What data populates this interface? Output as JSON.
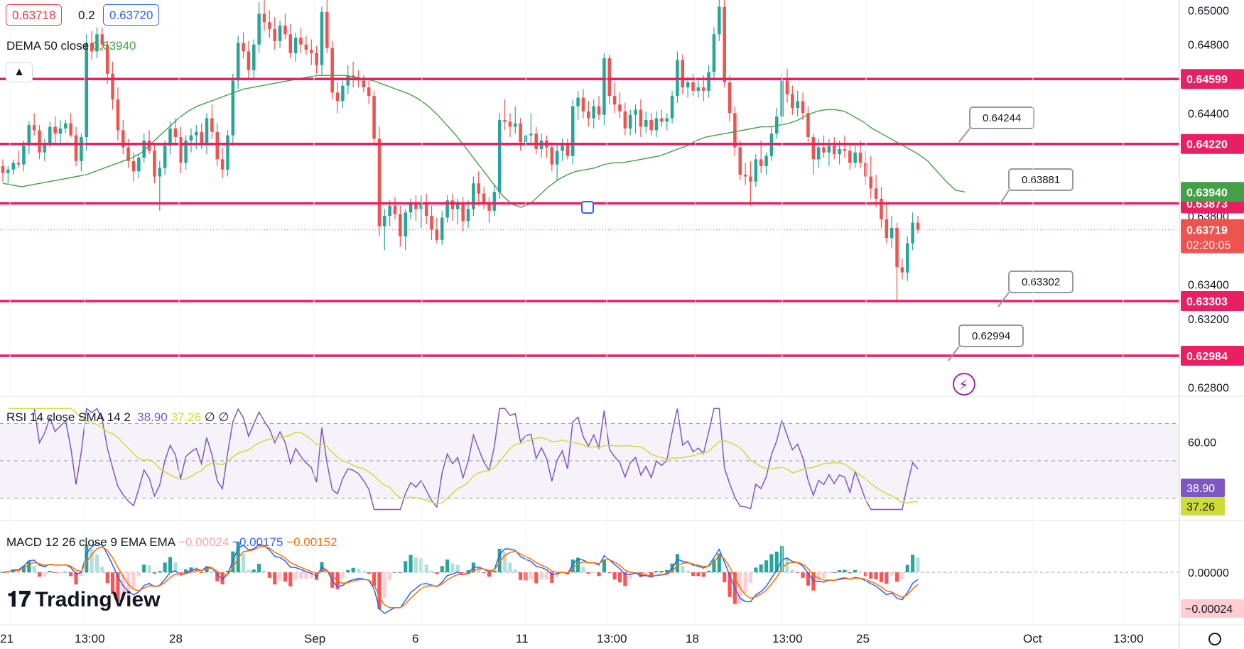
{
  "header": {
    "bid": "0.63718",
    "spread": "0.2",
    "ask": "0.63720",
    "dema_label": "DEMA 50 close",
    "dema_value": "0.63940",
    "rsi_label": "RSI 14 close SMA 14 2",
    "rsi_value": "38.90",
    "rsi_sma_value": "37.26",
    "rsi_extra1": "∅",
    "rsi_extra2": "∅",
    "macd_label": "MACD 12 26 close 9 EMA EMA",
    "macd_hist": "−0.00024",
    "macd_line": "−0.00175",
    "macd_signal": "−0.00152"
  },
  "watermark": "TradingView",
  "colors": {
    "up": "#26a69a",
    "down": "#ef5350",
    "level": "#e91e63",
    "dema": "#43a047",
    "rsi": "#7e57c2",
    "rsi_sma": "#cddc39",
    "macd": "#2962ff",
    "signal": "#ff6d00"
  },
  "chart_data": {
    "type": "candlestick",
    "price_axis": {
      "ticks": [
        "0.65000",
        "0.64800",
        "0.64400",
        "0.63800",
        "0.63400",
        "0.63200",
        "0.62800"
      ],
      "ylim": [
        0.6276,
        0.6506
      ]
    },
    "time_axis": {
      "ticks": [
        "21",
        "13:00",
        "28",
        "Sep",
        "6",
        "11",
        "13:00",
        "18",
        "13:00",
        "25",
        "Oct",
        "13:00"
      ]
    },
    "levels": [
      "0.64599",
      "0.64220",
      "0.63873",
      "0.63303",
      "0.62984"
    ],
    "callouts": [
      "0.64244",
      "0.63881",
      "0.63302",
      "0.62994"
    ],
    "current": {
      "price": "0.63719",
      "countdown": "02:20:05",
      "dema": "0.63940"
    },
    "ohlc": [
      [
        0.6409,
        0.6413,
        0.64,
        0.6405
      ],
      [
        0.6405,
        0.6409,
        0.6399,
        0.6407
      ],
      [
        0.6407,
        0.6413,
        0.6404,
        0.6411
      ],
      [
        0.6411,
        0.6418,
        0.6408,
        0.641
      ],
      [
        0.641,
        0.6424,
        0.6406,
        0.6421
      ],
      [
        0.6421,
        0.6435,
        0.6416,
        0.6433
      ],
      [
        0.6433,
        0.644,
        0.6427,
        0.643
      ],
      [
        0.643,
        0.6433,
        0.6413,
        0.6417
      ],
      [
        0.6417,
        0.6425,
        0.6412,
        0.6422
      ],
      [
        0.6422,
        0.6435,
        0.642,
        0.6432
      ],
      [
        0.6432,
        0.6438,
        0.6422,
        0.6428
      ],
      [
        0.6428,
        0.6436,
        0.6421,
        0.6431
      ],
      [
        0.6431,
        0.6436,
        0.6428,
        0.6434
      ],
      [
        0.6434,
        0.644,
        0.6426,
        0.6427
      ],
      [
        0.6427,
        0.6432,
        0.6409,
        0.6412
      ],
      [
        0.6412,
        0.6428,
        0.6406,
        0.6426
      ],
      [
        0.6426,
        0.6486,
        0.6418,
        0.6481
      ],
      [
        0.6481,
        0.6488,
        0.6471,
        0.6476
      ],
      [
        0.6476,
        0.649,
        0.6472,
        0.6486
      ],
      [
        0.6486,
        0.649,
        0.6476,
        0.648
      ],
      [
        0.648,
        0.6482,
        0.6457,
        0.6463
      ],
      [
        0.6463,
        0.647,
        0.6442,
        0.6448
      ],
      [
        0.6448,
        0.6455,
        0.6424,
        0.643
      ],
      [
        0.643,
        0.6436,
        0.6416,
        0.642
      ],
      [
        0.642,
        0.6425,
        0.6408,
        0.6412
      ],
      [
        0.6412,
        0.6417,
        0.64,
        0.6406
      ],
      [
        0.6406,
        0.6416,
        0.6402,
        0.6414
      ],
      [
        0.6414,
        0.6428,
        0.6411,
        0.6424
      ],
      [
        0.6424,
        0.643,
        0.6416,
        0.6418
      ],
      [
        0.6418,
        0.6422,
        0.6399,
        0.6403
      ],
      [
        0.6403,
        0.6412,
        0.6383,
        0.6408
      ],
      [
        0.6408,
        0.6424,
        0.6404,
        0.6421
      ],
      [
        0.6421,
        0.6435,
        0.6416,
        0.6431
      ],
      [
        0.6431,
        0.6437,
        0.6422,
        0.6426
      ],
      [
        0.6426,
        0.6432,
        0.6405,
        0.6411
      ],
      [
        0.6411,
        0.6427,
        0.6407,
        0.6424
      ],
      [
        0.6424,
        0.6431,
        0.6417,
        0.6427
      ],
      [
        0.6427,
        0.6433,
        0.6419,
        0.6429
      ],
      [
        0.6429,
        0.6434,
        0.6419,
        0.6422
      ],
      [
        0.6422,
        0.644,
        0.6416,
        0.6437
      ],
      [
        0.6437,
        0.6445,
        0.6425,
        0.6429
      ],
      [
        0.6429,
        0.6434,
        0.6409,
        0.6413
      ],
      [
        0.6413,
        0.642,
        0.6402,
        0.6407
      ],
      [
        0.6407,
        0.643,
        0.6403,
        0.6427
      ],
      [
        0.6427,
        0.6463,
        0.6421,
        0.6459
      ],
      [
        0.6459,
        0.6485,
        0.6454,
        0.6481
      ],
      [
        0.6481,
        0.6487,
        0.6472,
        0.6476
      ],
      [
        0.6476,
        0.6482,
        0.646,
        0.6465
      ],
      [
        0.6465,
        0.6483,
        0.646,
        0.648
      ],
      [
        0.648,
        0.6505,
        0.6475,
        0.6498
      ],
      [
        0.6498,
        0.6506,
        0.6488,
        0.6493
      ],
      [
        0.6493,
        0.65,
        0.6484,
        0.6489
      ],
      [
        0.6489,
        0.6496,
        0.6477,
        0.6482
      ],
      [
        0.6482,
        0.6494,
        0.6478,
        0.6491
      ],
      [
        0.6491,
        0.6498,
        0.6483,
        0.6486
      ],
      [
        0.6486,
        0.6492,
        0.6472,
        0.6475
      ],
      [
        0.6475,
        0.6487,
        0.647,
        0.6484
      ],
      [
        0.6484,
        0.649,
        0.6475,
        0.648
      ],
      [
        0.648,
        0.6485,
        0.6474,
        0.6477
      ],
      [
        0.6477,
        0.6483,
        0.6468,
        0.6475
      ],
      [
        0.6475,
        0.6479,
        0.6463,
        0.6468
      ],
      [
        0.6468,
        0.6502,
        0.6462,
        0.6499
      ],
      [
        0.6499,
        0.6506,
        0.6475,
        0.6478
      ],
      [
        0.6478,
        0.6482,
        0.6448,
        0.6452
      ],
      [
        0.6452,
        0.6458,
        0.644,
        0.6447
      ],
      [
        0.6447,
        0.6459,
        0.6443,
        0.6456
      ],
      [
        0.6456,
        0.6468,
        0.6451,
        0.6462
      ],
      [
        0.6462,
        0.647,
        0.6455,
        0.6461
      ],
      [
        0.6461,
        0.6465,
        0.6455,
        0.6459
      ],
      [
        0.6459,
        0.6462,
        0.6452,
        0.6455
      ],
      [
        0.6455,
        0.6459,
        0.6445,
        0.645
      ],
      [
        0.645,
        0.6453,
        0.6421,
        0.6425
      ],
      [
        0.6425,
        0.6432,
        0.6368,
        0.6374
      ],
      [
        0.6374,
        0.6384,
        0.636,
        0.638
      ],
      [
        0.638,
        0.6389,
        0.6374,
        0.6386
      ],
      [
        0.6386,
        0.6391,
        0.6378,
        0.6381
      ],
      [
        0.6381,
        0.6386,
        0.6362,
        0.6368
      ],
      [
        0.6368,
        0.6384,
        0.636,
        0.6382
      ],
      [
        0.6382,
        0.639,
        0.6378,
        0.6388
      ],
      [
        0.6388,
        0.6392,
        0.6377,
        0.6384
      ],
      [
        0.6384,
        0.6392,
        0.6373,
        0.6387
      ],
      [
        0.6387,
        0.6393,
        0.6375,
        0.638
      ],
      [
        0.638,
        0.6386,
        0.6366,
        0.6372
      ],
      [
        0.6372,
        0.6379,
        0.6364,
        0.6366
      ],
      [
        0.6366,
        0.6383,
        0.6363,
        0.6379
      ],
      [
        0.6379,
        0.6392,
        0.6376,
        0.6389
      ],
      [
        0.6389,
        0.6393,
        0.6377,
        0.6384
      ],
      [
        0.6384,
        0.639,
        0.6375,
        0.6387
      ],
      [
        0.6387,
        0.6391,
        0.6371,
        0.6377
      ],
      [
        0.6377,
        0.6389,
        0.6373,
        0.6384
      ],
      [
        0.6384,
        0.6403,
        0.638,
        0.6399
      ],
      [
        0.6399,
        0.6406,
        0.6386,
        0.6393
      ],
      [
        0.6393,
        0.6397,
        0.6384,
        0.6387
      ],
      [
        0.6387,
        0.6391,
        0.6376,
        0.6383
      ],
      [
        0.6383,
        0.6398,
        0.638,
        0.6394
      ],
      [
        0.6394,
        0.644,
        0.639,
        0.6436
      ],
      [
        0.6436,
        0.6448,
        0.643,
        0.6435
      ],
      [
        0.6435,
        0.644,
        0.6426,
        0.6432
      ],
      [
        0.6432,
        0.6444,
        0.6428,
        0.6434
      ],
      [
        0.6434,
        0.6437,
        0.6418,
        0.6423
      ],
      [
        0.6423,
        0.643,
        0.6418,
        0.6427
      ],
      [
        0.6427,
        0.644,
        0.6422,
        0.6428
      ],
      [
        0.6428,
        0.6432,
        0.6416,
        0.6419
      ],
      [
        0.6419,
        0.6428,
        0.6414,
        0.6424
      ],
      [
        0.6424,
        0.6427,
        0.6414,
        0.642
      ],
      [
        0.642,
        0.6423,
        0.6406,
        0.641
      ],
      [
        0.641,
        0.6422,
        0.6401,
        0.6418
      ],
      [
        0.6418,
        0.6425,
        0.6412,
        0.6422
      ],
      [
        0.6422,
        0.6425,
        0.6413,
        0.6415
      ],
      [
        0.6415,
        0.6448,
        0.641,
        0.6444
      ],
      [
        0.6444,
        0.6453,
        0.6436,
        0.6449
      ],
      [
        0.6449,
        0.6454,
        0.6437,
        0.6441
      ],
      [
        0.6441,
        0.6447,
        0.6432,
        0.6437
      ],
      [
        0.6437,
        0.6448,
        0.6431,
        0.6444
      ],
      [
        0.6444,
        0.645,
        0.6436,
        0.6439
      ],
      [
        0.6439,
        0.6475,
        0.6433,
        0.6472
      ],
      [
        0.6472,
        0.6474,
        0.6445,
        0.645
      ],
      [
        0.645,
        0.6458,
        0.644,
        0.6445
      ],
      [
        0.6445,
        0.6452,
        0.6437,
        0.6441
      ],
      [
        0.6441,
        0.6446,
        0.6427,
        0.6431
      ],
      [
        0.6431,
        0.6442,
        0.6427,
        0.6439
      ],
      [
        0.6439,
        0.6445,
        0.6428,
        0.6442
      ],
      [
        0.6442,
        0.6448,
        0.6426,
        0.6432
      ],
      [
        0.6432,
        0.6441,
        0.6428,
        0.6436
      ],
      [
        0.6436,
        0.644,
        0.6427,
        0.643
      ],
      [
        0.643,
        0.6441,
        0.6426,
        0.6437
      ],
      [
        0.6437,
        0.6442,
        0.6432,
        0.6435
      ],
      [
        0.6435,
        0.644,
        0.643,
        0.6437
      ],
      [
        0.6437,
        0.6453,
        0.6434,
        0.645
      ],
      [
        0.645,
        0.6476,
        0.6446,
        0.6471
      ],
      [
        0.6471,
        0.6474,
        0.6451,
        0.6455
      ],
      [
        0.6455,
        0.6461,
        0.6449,
        0.6458
      ],
      [
        0.6458,
        0.6463,
        0.645,
        0.6453
      ],
      [
        0.6453,
        0.6459,
        0.6449,
        0.6455
      ],
      [
        0.6455,
        0.6462,
        0.6447,
        0.6453
      ],
      [
        0.6453,
        0.6468,
        0.6449,
        0.6464
      ],
      [
        0.6464,
        0.649,
        0.646,
        0.6486
      ],
      [
        0.6486,
        0.6506,
        0.6482,
        0.6502
      ],
      [
        0.6502,
        0.6506,
        0.6455,
        0.6458
      ],
      [
        0.6458,
        0.6462,
        0.6435,
        0.644
      ],
      [
        0.644,
        0.6444,
        0.6415,
        0.642
      ],
      [
        0.642,
        0.6424,
        0.6401,
        0.6404
      ],
      [
        0.6404,
        0.6411,
        0.6398,
        0.6403
      ],
      [
        0.6403,
        0.6412,
        0.6386,
        0.64
      ],
      [
        0.64,
        0.6416,
        0.6397,
        0.6413
      ],
      [
        0.6413,
        0.6424,
        0.6405,
        0.6409
      ],
      [
        0.6409,
        0.6417,
        0.6404,
        0.6415
      ],
      [
        0.6415,
        0.6432,
        0.6412,
        0.6428
      ],
      [
        0.6428,
        0.6443,
        0.6425,
        0.6438
      ],
      [
        0.6438,
        0.6463,
        0.6434,
        0.6459
      ],
      [
        0.6459,
        0.6466,
        0.6446,
        0.6451
      ],
      [
        0.6451,
        0.6456,
        0.6439,
        0.6443
      ],
      [
        0.6443,
        0.6453,
        0.6438,
        0.6447
      ],
      [
        0.6447,
        0.6452,
        0.6436,
        0.644
      ],
      [
        0.644,
        0.6444,
        0.6423,
        0.6426
      ],
      [
        0.6426,
        0.6428,
        0.6404,
        0.6413
      ],
      [
        0.6413,
        0.6425,
        0.6408,
        0.642
      ],
      [
        0.642,
        0.6427,
        0.6414,
        0.6417
      ],
      [
        0.6417,
        0.6425,
        0.6409,
        0.6421
      ],
      [
        0.6421,
        0.6426,
        0.6413,
        0.6416
      ],
      [
        0.6416,
        0.6424,
        0.641,
        0.6419
      ],
      [
        0.6419,
        0.6427,
        0.6414,
        0.6418
      ],
      [
        0.6418,
        0.6422,
        0.6407,
        0.6411
      ],
      [
        0.6411,
        0.6421,
        0.6408,
        0.6417
      ],
      [
        0.6417,
        0.6424,
        0.6408,
        0.6411
      ],
      [
        0.6411,
        0.6418,
        0.6398,
        0.6403
      ],
      [
        0.6403,
        0.6415,
        0.639,
        0.6396
      ],
      [
        0.6396,
        0.6404,
        0.6385,
        0.639
      ],
      [
        0.639,
        0.6397,
        0.6373,
        0.6378
      ],
      [
        0.6378,
        0.6388,
        0.6364,
        0.6367
      ],
      [
        0.6367,
        0.638,
        0.6361,
        0.6373
      ],
      [
        0.6373,
        0.6376,
        0.633,
        0.635
      ],
      [
        0.635,
        0.6355,
        0.6343,
        0.6347
      ],
      [
        0.6347,
        0.6368,
        0.6342,
        0.6364
      ],
      [
        0.6364,
        0.6382,
        0.636,
        0.6376
      ],
      [
        0.6376,
        0.638,
        0.637,
        0.6372
      ]
    ],
    "dema": [
      0.6399,
      0.6398,
      0.6397,
      0.6398,
      0.6399,
      0.64,
      0.6401,
      0.6402,
      0.6403,
      0.6404,
      0.6406,
      0.6408,
      0.641,
      0.6412,
      0.6414,
      0.6417,
      0.6422,
      0.6427,
      0.6432,
      0.6437,
      0.6441,
      0.6444,
      0.6446,
      0.6448,
      0.645,
      0.6452,
      0.6454,
      0.6455,
      0.6456,
      0.6457,
      0.6458,
      0.6459,
      0.646,
      0.6461,
      0.6462,
      0.6462,
      0.6462,
      0.6462,
      0.6461,
      0.646,
      0.6459,
      0.6457,
      0.6455,
      0.6453,
      0.6451,
      0.6448,
      0.6444,
      0.6439,
      0.6433,
      0.6427,
      0.642,
      0.6413,
      0.6406,
      0.6399,
      0.6392,
      0.6387,
      0.6385,
      0.6387,
      0.6392,
      0.6397,
      0.6401,
      0.6404,
      0.6406,
      0.6407,
      0.6408,
      0.641,
      0.6411,
      0.6411,
      0.6412,
      0.6413,
      0.6414,
      0.6415,
      0.6417,
      0.6419,
      0.6421,
      0.6424,
      0.6426,
      0.6427,
      0.6428,
      0.6429,
      0.643,
      0.6431,
      0.6432,
      0.6432,
      0.6433,
      0.6434,
      0.6436,
      0.6439,
      0.6441,
      0.6442,
      0.6442,
      0.6441,
      0.6438,
      0.6435,
      0.6431,
      0.6428,
      0.6425,
      0.6422,
      0.6419,
      0.6416,
      0.6412,
      0.6406,
      0.64,
      0.6395,
      0.6394
    ]
  }
}
